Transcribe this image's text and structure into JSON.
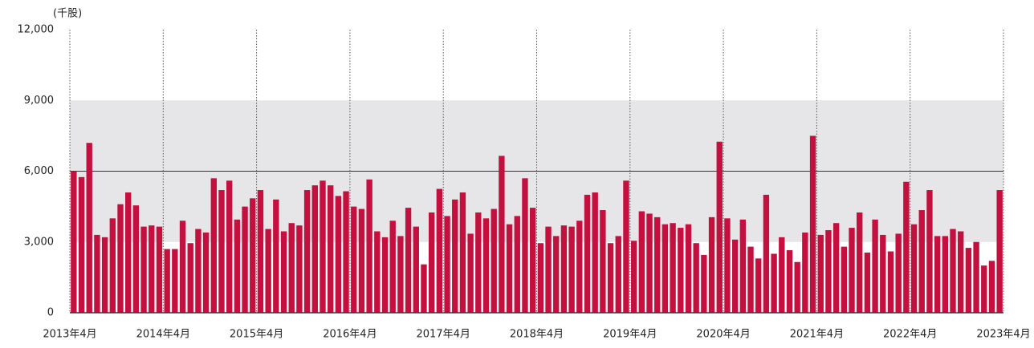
{
  "chart_data": {
    "type": "bar",
    "y_unit": "(千股)",
    "color": "#c4103f",
    "band": {
      "range": [
        3000,
        9000
      ],
      "color": "#e6e6e8"
    },
    "reference_line": {
      "value": 6000,
      "color": "#333333"
    },
    "xlim": [
      0,
      120
    ],
    "xticks": [
      {
        "value": 0,
        "label": "2013年4月"
      },
      {
        "value": 12,
        "label": "2014年4月"
      },
      {
        "value": 24,
        "label": "2015年4月"
      },
      {
        "value": 36,
        "label": "2016年4月"
      },
      {
        "value": 48,
        "label": "2017年4月"
      },
      {
        "value": 60,
        "label": "2018年4月"
      },
      {
        "value": 72,
        "label": "2019年4月"
      },
      {
        "value": 84,
        "label": "2020年4月"
      },
      {
        "value": 96,
        "label": "2021年4月"
      },
      {
        "value": 108,
        "label": "2022年4月"
      },
      {
        "value": 120,
        "label": "2023年4月"
      }
    ],
    "ylim": [
      0,
      12000
    ],
    "yticks": [
      0,
      {
        "value": 3000,
        "label": "3,000"
      },
      {
        "value": 6000,
        "label": "6,000"
      },
      {
        "value": 9000,
        "label": "9,000"
      },
      {
        "value": 12000,
        "label": "12,000"
      }
    ],
    "values": [
      6000,
      5750,
      7200,
      3300,
      3200,
      4000,
      4600,
      5100,
      4550,
      3650,
      3700,
      3650,
      2700,
      2700,
      3900,
      2950,
      3550,
      3400,
      5700,
      5200,
      5600,
      3950,
      4500,
      4850,
      5200,
      3550,
      4800,
      3450,
      3800,
      3700,
      5200,
      5400,
      5600,
      5400,
      4950,
      5150,
      4500,
      4400,
      5650,
      3450,
      3200,
      3900,
      3250,
      4450,
      3650,
      2050,
      4250,
      5250,
      4100,
      4800,
      5100,
      3350,
      4250,
      4000,
      4400,
      6650,
      3750,
      4100,
      5700,
      4450,
      2950,
      3650,
      3250,
      3700,
      3650,
      3900,
      5000,
      5100,
      4350,
      2950,
      3250,
      5600,
      3050,
      4300,
      4200,
      4050,
      3750,
      3800,
      3600,
      3750,
      2950,
      2450,
      4050,
      7250,
      4000,
      3100,
      3950,
      2800,
      2300,
      5000,
      2500,
      3200,
      2650,
      2150,
      3400,
      7500,
      3300,
      3500,
      3800,
      2800,
      3600,
      4250,
      2550,
      3950,
      3300,
      2600,
      3350,
      5550,
      3750,
      4350,
      5200,
      3250,
      3250,
      3550,
      3450,
      2750,
      3000,
      2000,
      2200,
      5200
    ]
  }
}
